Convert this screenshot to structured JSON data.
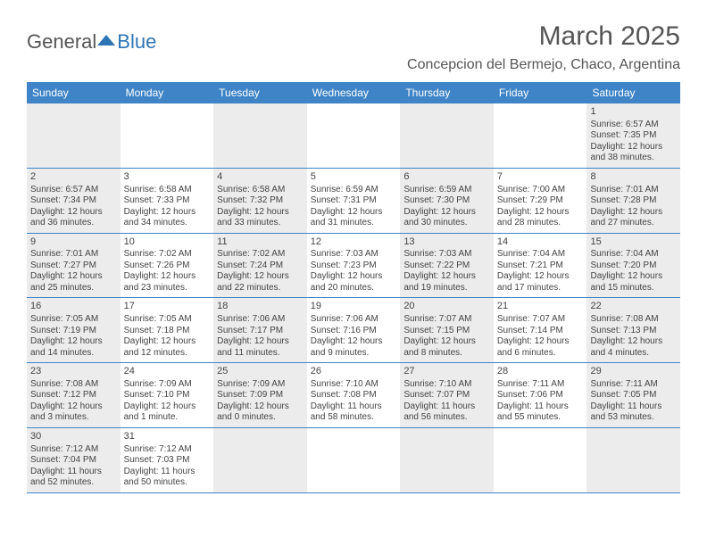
{
  "brand": {
    "part1": "General",
    "part2": "Blue"
  },
  "title": "March 2025",
  "location": "Concepcion del Bermejo, Chaco, Argentina",
  "colors": {
    "header_bg": "#3e84c6",
    "header_text": "#ffffff",
    "shaded_cell": "#ececec",
    "rule": "#3e84c6",
    "text": "#444444"
  },
  "weekdays": [
    "Sunday",
    "Monday",
    "Tuesday",
    "Wednesday",
    "Thursday",
    "Friday",
    "Saturday"
  ],
  "weeks": [
    [
      {
        "shaded": true
      },
      {
        "shaded": false
      },
      {
        "shaded": true
      },
      {
        "shaded": false
      },
      {
        "shaded": true
      },
      {
        "shaded": false
      },
      {
        "shaded": true,
        "day": "1",
        "sunrise": "Sunrise: 6:57 AM",
        "sunset": "Sunset: 7:35 PM",
        "daylight1": "Daylight: 12 hours",
        "daylight2": "and 38 minutes."
      }
    ],
    [
      {
        "shaded": true,
        "day": "2",
        "sunrise": "Sunrise: 6:57 AM",
        "sunset": "Sunset: 7:34 PM",
        "daylight1": "Daylight: 12 hours",
        "daylight2": "and 36 minutes."
      },
      {
        "shaded": false,
        "day": "3",
        "sunrise": "Sunrise: 6:58 AM",
        "sunset": "Sunset: 7:33 PM",
        "daylight1": "Daylight: 12 hours",
        "daylight2": "and 34 minutes."
      },
      {
        "shaded": true,
        "day": "4",
        "sunrise": "Sunrise: 6:58 AM",
        "sunset": "Sunset: 7:32 PM",
        "daylight1": "Daylight: 12 hours",
        "daylight2": "and 33 minutes."
      },
      {
        "shaded": false,
        "day": "5",
        "sunrise": "Sunrise: 6:59 AM",
        "sunset": "Sunset: 7:31 PM",
        "daylight1": "Daylight: 12 hours",
        "daylight2": "and 31 minutes."
      },
      {
        "shaded": true,
        "day": "6",
        "sunrise": "Sunrise: 6:59 AM",
        "sunset": "Sunset: 7:30 PM",
        "daylight1": "Daylight: 12 hours",
        "daylight2": "and 30 minutes."
      },
      {
        "shaded": false,
        "day": "7",
        "sunrise": "Sunrise: 7:00 AM",
        "sunset": "Sunset: 7:29 PM",
        "daylight1": "Daylight: 12 hours",
        "daylight2": "and 28 minutes."
      },
      {
        "shaded": true,
        "day": "8",
        "sunrise": "Sunrise: 7:01 AM",
        "sunset": "Sunset: 7:28 PM",
        "daylight1": "Daylight: 12 hours",
        "daylight2": "and 27 minutes."
      }
    ],
    [
      {
        "shaded": true,
        "day": "9",
        "sunrise": "Sunrise: 7:01 AM",
        "sunset": "Sunset: 7:27 PM",
        "daylight1": "Daylight: 12 hours",
        "daylight2": "and 25 minutes."
      },
      {
        "shaded": false,
        "day": "10",
        "sunrise": "Sunrise: 7:02 AM",
        "sunset": "Sunset: 7:26 PM",
        "daylight1": "Daylight: 12 hours",
        "daylight2": "and 23 minutes."
      },
      {
        "shaded": true,
        "day": "11",
        "sunrise": "Sunrise: 7:02 AM",
        "sunset": "Sunset: 7:24 PM",
        "daylight1": "Daylight: 12 hours",
        "daylight2": "and 22 minutes."
      },
      {
        "shaded": false,
        "day": "12",
        "sunrise": "Sunrise: 7:03 AM",
        "sunset": "Sunset: 7:23 PM",
        "daylight1": "Daylight: 12 hours",
        "daylight2": "and 20 minutes."
      },
      {
        "shaded": true,
        "day": "13",
        "sunrise": "Sunrise: 7:03 AM",
        "sunset": "Sunset: 7:22 PM",
        "daylight1": "Daylight: 12 hours",
        "daylight2": "and 19 minutes."
      },
      {
        "shaded": false,
        "day": "14",
        "sunrise": "Sunrise: 7:04 AM",
        "sunset": "Sunset: 7:21 PM",
        "daylight1": "Daylight: 12 hours",
        "daylight2": "and 17 minutes."
      },
      {
        "shaded": true,
        "day": "15",
        "sunrise": "Sunrise: 7:04 AM",
        "sunset": "Sunset: 7:20 PM",
        "daylight1": "Daylight: 12 hours",
        "daylight2": "and 15 minutes."
      }
    ],
    [
      {
        "shaded": true,
        "day": "16",
        "sunrise": "Sunrise: 7:05 AM",
        "sunset": "Sunset: 7:19 PM",
        "daylight1": "Daylight: 12 hours",
        "daylight2": "and 14 minutes."
      },
      {
        "shaded": false,
        "day": "17",
        "sunrise": "Sunrise: 7:05 AM",
        "sunset": "Sunset: 7:18 PM",
        "daylight1": "Daylight: 12 hours",
        "daylight2": "and 12 minutes."
      },
      {
        "shaded": true,
        "day": "18",
        "sunrise": "Sunrise: 7:06 AM",
        "sunset": "Sunset: 7:17 PM",
        "daylight1": "Daylight: 12 hours",
        "daylight2": "and 11 minutes."
      },
      {
        "shaded": false,
        "day": "19",
        "sunrise": "Sunrise: 7:06 AM",
        "sunset": "Sunset: 7:16 PM",
        "daylight1": "Daylight: 12 hours",
        "daylight2": "and 9 minutes."
      },
      {
        "shaded": true,
        "day": "20",
        "sunrise": "Sunrise: 7:07 AM",
        "sunset": "Sunset: 7:15 PM",
        "daylight1": "Daylight: 12 hours",
        "daylight2": "and 8 minutes."
      },
      {
        "shaded": false,
        "day": "21",
        "sunrise": "Sunrise: 7:07 AM",
        "sunset": "Sunset: 7:14 PM",
        "daylight1": "Daylight: 12 hours",
        "daylight2": "and 6 minutes."
      },
      {
        "shaded": true,
        "day": "22",
        "sunrise": "Sunrise: 7:08 AM",
        "sunset": "Sunset: 7:13 PM",
        "daylight1": "Daylight: 12 hours",
        "daylight2": "and 4 minutes."
      }
    ],
    [
      {
        "shaded": true,
        "day": "23",
        "sunrise": "Sunrise: 7:08 AM",
        "sunset": "Sunset: 7:12 PM",
        "daylight1": "Daylight: 12 hours",
        "daylight2": "and 3 minutes."
      },
      {
        "shaded": false,
        "day": "24",
        "sunrise": "Sunrise: 7:09 AM",
        "sunset": "Sunset: 7:10 PM",
        "daylight1": "Daylight: 12 hours",
        "daylight2": "and 1 minute."
      },
      {
        "shaded": true,
        "day": "25",
        "sunrise": "Sunrise: 7:09 AM",
        "sunset": "Sunset: 7:09 PM",
        "daylight1": "Daylight: 12 hours",
        "daylight2": "and 0 minutes."
      },
      {
        "shaded": false,
        "day": "26",
        "sunrise": "Sunrise: 7:10 AM",
        "sunset": "Sunset: 7:08 PM",
        "daylight1": "Daylight: 11 hours",
        "daylight2": "and 58 minutes."
      },
      {
        "shaded": true,
        "day": "27",
        "sunrise": "Sunrise: 7:10 AM",
        "sunset": "Sunset: 7:07 PM",
        "daylight1": "Daylight: 11 hours",
        "daylight2": "and 56 minutes."
      },
      {
        "shaded": false,
        "day": "28",
        "sunrise": "Sunrise: 7:11 AM",
        "sunset": "Sunset: 7:06 PM",
        "daylight1": "Daylight: 11 hours",
        "daylight2": "and 55 minutes."
      },
      {
        "shaded": true,
        "day": "29",
        "sunrise": "Sunrise: 7:11 AM",
        "sunset": "Sunset: 7:05 PM",
        "daylight1": "Daylight: 11 hours",
        "daylight2": "and 53 minutes."
      }
    ],
    [
      {
        "shaded": true,
        "day": "30",
        "sunrise": "Sunrise: 7:12 AM",
        "sunset": "Sunset: 7:04 PM",
        "daylight1": "Daylight: 11 hours",
        "daylight2": "and 52 minutes."
      },
      {
        "shaded": false,
        "day": "31",
        "sunrise": "Sunrise: 7:12 AM",
        "sunset": "Sunset: 7:03 PM",
        "daylight1": "Daylight: 11 hours",
        "daylight2": "and 50 minutes."
      },
      {
        "shaded": true
      },
      {
        "shaded": false
      },
      {
        "shaded": true
      },
      {
        "shaded": false
      },
      {
        "shaded": true
      }
    ]
  ]
}
